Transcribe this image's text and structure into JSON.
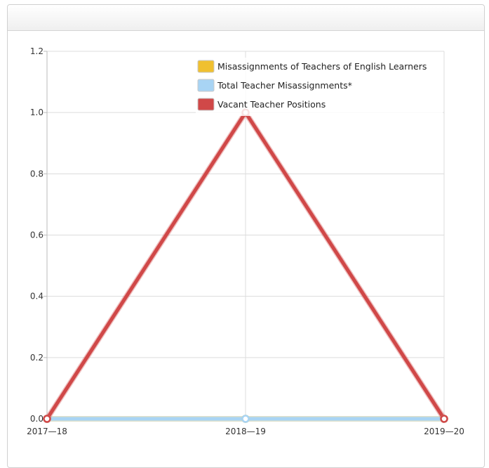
{
  "chart_data": {
    "type": "line",
    "categories": [
      "2017—18",
      "2018—19",
      "2019—20"
    ],
    "ylim": [
      0,
      1.2
    ],
    "yticks": [
      "0.0",
      "0.2",
      "0.4",
      "0.6",
      "0.8",
      "1.0",
      "1.2"
    ],
    "grid": true,
    "legend_position": "top-right",
    "series": [
      {
        "name": "Misassignments of Teachers of English Learners",
        "values": [
          0,
          0,
          0
        ],
        "color": "#f0c030"
      },
      {
        "name": "Total Teacher Misassignments*",
        "values": [
          0,
          0,
          0
        ],
        "color": "#a8d4f4"
      },
      {
        "name": "Vacant Teacher Positions",
        "values": [
          0,
          1,
          0
        ],
        "color": "#d04848"
      }
    ]
  }
}
